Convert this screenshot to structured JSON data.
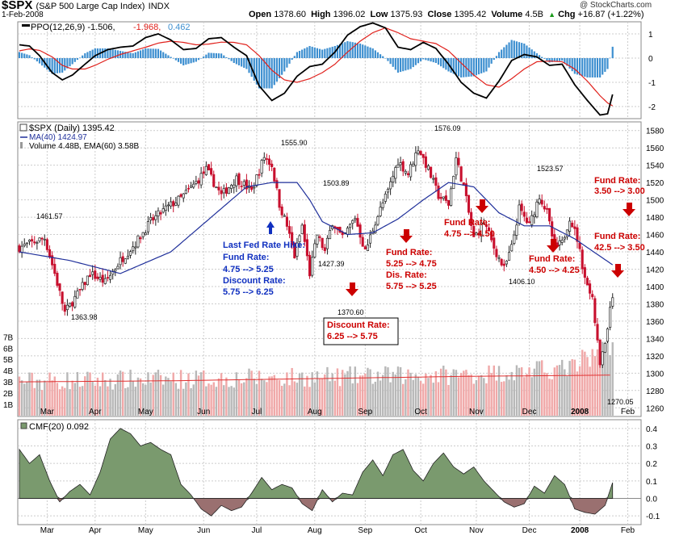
{
  "header": {
    "symbol": "$SPX",
    "name": "(S&P 500 Large Cap Index)",
    "exchange": "INDX",
    "date": "1-Feb-2008",
    "copyright": "@ StockCharts.com",
    "open_label": "Open",
    "open": "1378.60",
    "high_label": "High",
    "high": "1396.02",
    "low_label": "Low",
    "low": "1375.93",
    "close_label": "Close",
    "close": "1395.42",
    "volume_label": "Volume",
    "volume": "4.5B",
    "chg_label": "Chg",
    "chg": "+16.87 (+1.22%)",
    "chg_arrow": "▲"
  },
  "colors": {
    "ppo": "#000000",
    "signal": "#e0201b",
    "hist": "#3d8fd0",
    "ma": "#1f2f9a",
    "ema_vol": "#e03030",
    "up": "#222222",
    "down": "#c8102e",
    "vol_up": "#b8b8b8",
    "vol_down": "#f0a8a8",
    "cmf_pos": "#7a9a6e",
    "cmf_neg": "#9a7070",
    "blue_note": "#1030c0",
    "red_note": "#cc0000",
    "grid": "#cccccc"
  },
  "chart_data": [
    {
      "type": "line",
      "title": "PPO(12,26,9)",
      "legend": [
        "PPO(12,26,9) -1.506",
        "-1.968",
        "0.462"
      ],
      "ppo_label": "PPO(12,26,9) -1.506,",
      "signal_label": "-1.968,",
      "hist_label": "0.462",
      "ylim": [
        -2.5,
        1.5
      ],
      "yticks": [
        "1",
        "0",
        "-1",
        "-2"
      ],
      "yticks_values": [
        1,
        0,
        -1,
        -2
      ],
      "t": [
        0,
        4,
        8,
        13,
        17,
        21,
        26,
        30,
        35,
        40,
        45,
        50,
        55,
        60,
        65,
        70,
        75,
        80,
        85,
        90,
        95,
        100,
        105,
        110,
        115,
        120,
        125,
        130,
        135,
        140,
        145,
        150,
        155,
        160,
        165,
        170,
        175,
        180,
        185,
        190,
        195,
        200,
        205,
        210,
        215,
        220,
        225,
        230,
        233,
        235
      ],
      "ppo": [
        0.55,
        0.5,
        0.1,
        -0.6,
        -0.9,
        -0.7,
        -0.25,
        0.1,
        0.35,
        0.45,
        0.5,
        0.85,
        1.0,
        0.75,
        0.35,
        0.4,
        0.8,
        0.85,
        0.45,
        0.1,
        -1.15,
        -1.75,
        -1.45,
        -0.75,
        -0.35,
        -0.25,
        0.25,
        0.95,
        1.3,
        1.45,
        1.25,
        0.45,
        0.35,
        0.65,
        0.4,
        -0.25,
        -1.0,
        -1.45,
        -1.65,
        -0.95,
        -0.1,
        0.15,
        0.05,
        -0.3,
        -0.25,
        -1.1,
        -1.75,
        -2.35,
        -2.3,
        -1.5
      ],
      "signal": [
        0.3,
        0.38,
        0.32,
        0.05,
        -0.3,
        -0.45,
        -0.45,
        -0.3,
        -0.05,
        0.15,
        0.3,
        0.45,
        0.62,
        0.7,
        0.65,
        0.55,
        0.58,
        0.66,
        0.65,
        0.55,
        0.1,
        -0.5,
        -0.9,
        -1.0,
        -0.85,
        -0.6,
        -0.25,
        0.25,
        0.7,
        1.05,
        1.25,
        1.05,
        0.8,
        0.7,
        0.6,
        0.3,
        -0.2,
        -0.7,
        -1.1,
        -1.2,
        -0.85,
        -0.45,
        -0.15,
        -0.12,
        -0.15,
        -0.45,
        -0.95,
        -1.55,
        -1.85,
        -1.97
      ]
    },
    {
      "type": "candlestick",
      "title": "$SPX (Daily) 1395.42",
      "legend": [
        "$SPX (Daily) 1395.42",
        "MA(40) 1424.97",
        "Volume 4.48B, EMA(60) 3.58B"
      ],
      "price_label": "$SPX (Daily) 1395.42",
      "ma_label": "MA(40) 1424.97",
      "vol_label": "Volume 4.48B, EMA(60) 3.58B",
      "ylim": [
        1250,
        1590
      ],
      "yticks": [
        "1580",
        "1560",
        "1540",
        "1520",
        "1500",
        "1480",
        "1460",
        "1440",
        "1420",
        "1400",
        "1380",
        "1360",
        "1340",
        "1320",
        "1300",
        "1280",
        "1260"
      ],
      "yticks_values": [
        1580,
        1560,
        1540,
        1520,
        1500,
        1480,
        1460,
        1440,
        1420,
        1400,
        1380,
        1360,
        1340,
        1320,
        1300,
        1280,
        1260
      ],
      "volume_ticks": [
        "7B",
        "6B",
        "5B",
        "4B",
        "3B",
        "2B",
        "1B"
      ],
      "volume_ticks_values": [
        7,
        6,
        5,
        4,
        3,
        2,
        1
      ],
      "volume_max_b": 8.6,
      "price_kp_t": [
        0,
        10,
        14,
        18,
        24,
        28,
        34,
        40,
        46,
        52,
        58,
        64,
        70,
        74,
        80,
        86,
        92,
        97,
        100,
        103,
        106,
        109,
        112,
        115,
        118,
        121,
        124,
        128,
        133,
        137,
        141,
        146,
        150,
        154,
        158,
        162,
        166,
        170,
        173,
        176,
        180,
        184,
        188,
        192,
        195,
        198,
        202,
        206,
        209,
        212,
        215,
        218,
        221,
        224,
        227,
        230,
        232,
        235
      ],
      "price_kp_v": [
        1445,
        1456,
        1415,
        1370,
        1395,
        1415,
        1405,
        1430,
        1450,
        1475,
        1490,
        1502,
        1520,
        1535,
        1505,
        1525,
        1510,
        1550,
        1540,
        1495,
        1470,
        1435,
        1470,
        1415,
        1460,
        1440,
        1475,
        1455,
        1480,
        1440,
        1475,
        1510,
        1545,
        1530,
        1560,
        1535,
        1505,
        1495,
        1548,
        1515,
        1455,
        1475,
        1445,
        1420,
        1445,
        1490,
        1470,
        1505,
        1485,
        1445,
        1450,
        1480,
        1455,
        1410,
        1385,
        1310,
        1335,
        1390
      ],
      "ma_t": [
        0,
        20,
        40,
        60,
        80,
        90,
        100,
        110,
        115,
        120,
        130,
        140,
        150,
        160,
        170,
        180,
        190,
        200,
        210,
        220,
        235
      ],
      "ma_v": [
        1440,
        1430,
        1415,
        1440,
        1490,
        1515,
        1520,
        1520,
        1500,
        1475,
        1460,
        1462,
        1478,
        1500,
        1520,
        1515,
        1485,
        1470,
        1470,
        1455,
        1425
      ],
      "volume_ema_b": [
        3.0,
        3.1,
        3.3,
        3.5,
        3.6
      ],
      "annotations": {
        "p1461": "1461.57",
        "p1363": "1363.98",
        "p1555": "1555.90",
        "p1503": "1503.89",
        "p1427": "1427.39",
        "p1370": "1370.60",
        "p1576": "1576.09",
        "p1523": "1523.57",
        "p1406": "1406.10",
        "p1270": "1270.05"
      },
      "notes": {
        "blue_1": "Last Fed Rate Hike:",
        "blue_2": "Fund Rate:",
        "blue_3": "4.75 --> 5.25",
        "blue_4": "Discount Rate:",
        "blue_5": "5.75 --> 6.25",
        "box_1": "Discount Rate:",
        "box_2": "6.25 --> 5.75",
        "r1_1": "Fund Rate:",
        "r1_2": "5.25 --> 4.75",
        "r1_3": "Dis. Rate:",
        "r1_4": "5.75 --> 5.25",
        "r2_1": "Fund Rate:",
        "r2_2": "4.75 --> 4.50",
        "r3_1": "Fund Rate:",
        "r3_2": "4.50 --> 4.25",
        "r4_1": "Fund Rate:",
        "r4_2": "42.5 --> 3.50",
        "r5_1": "Fund Rate:",
        "r5_2": "3.50 --> 3.00"
      }
    },
    {
      "type": "area",
      "title": "CMF(20)",
      "cmf_label": "CMF(20) 0.092",
      "ylim": [
        -0.15,
        0.45
      ],
      "yticks": [
        "0.4",
        "0.3",
        "0.2",
        "0.1",
        "0.0",
        "-0.1"
      ],
      "yticks_values": [
        0.4,
        0.3,
        0.2,
        0.1,
        0.0,
        -0.1
      ],
      "t": [
        0,
        4,
        8,
        12,
        16,
        20,
        24,
        28,
        32,
        36,
        40,
        44,
        48,
        52,
        56,
        60,
        64,
        68,
        72,
        76,
        80,
        84,
        88,
        92,
        96,
        100,
        104,
        108,
        112,
        116,
        120,
        124,
        128,
        132,
        136,
        140,
        144,
        148,
        152,
        156,
        160,
        164,
        168,
        172,
        176,
        180,
        184,
        188,
        192,
        196,
        200,
        204,
        208,
        212,
        216,
        220,
        224,
        228,
        232,
        235
      ],
      "values": [
        0.28,
        0.2,
        0.25,
        0.1,
        -0.02,
        0.04,
        0.08,
        0.02,
        0.15,
        0.34,
        0.4,
        0.37,
        0.3,
        0.32,
        0.28,
        0.25,
        0.08,
        0.02,
        -0.06,
        -0.1,
        -0.04,
        -0.07,
        -0.05,
        0.03,
        0.12,
        0.05,
        0.08,
        0.06,
        -0.03,
        -0.07,
        0.05,
        -0.02,
        0.03,
        0.02,
        0.15,
        0.22,
        0.13,
        0.25,
        0.28,
        0.16,
        0.1,
        0.2,
        0.26,
        0.18,
        0.14,
        0.18,
        0.1,
        0.04,
        -0.02,
        -0.05,
        -0.03,
        0.07,
        0.03,
        0.13,
        0.08,
        -0.06,
        -0.08,
        -0.09,
        -0.04,
        0.09
      ]
    }
  ],
  "months": [
    "Mar",
    "Apr",
    "May",
    "Jun",
    "Jul",
    "Aug",
    "Sep",
    "Oct",
    "Nov",
    "Dec",
    "2008",
    "Feb"
  ],
  "months_t": [
    11,
    30,
    50,
    73,
    94,
    117,
    137,
    159,
    181,
    202,
    222,
    241
  ]
}
